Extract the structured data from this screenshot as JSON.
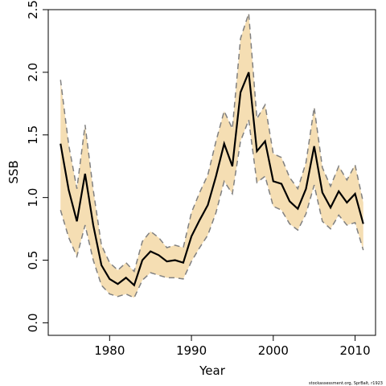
{
  "chart_data": {
    "type": "line",
    "title": "",
    "xlabel": "Year",
    "ylabel": "SSB",
    "xlim": [
      1972.5,
      2012.5
    ],
    "ylim": [
      -0.1,
      2.5
    ],
    "x_ticks": [
      1980,
      1990,
      2000,
      2010
    ],
    "x_tick_labels": [
      "1980",
      "1990",
      "2000",
      "2010"
    ],
    "y_ticks": [
      0.0,
      0.5,
      1.0,
      1.5,
      2.0,
      2.5
    ],
    "y_tick_labels": [
      "0.0",
      "0.5",
      "1.0",
      "1.5",
      "2.0",
      "2.5"
    ],
    "grid": false,
    "colors": {
      "band": "#f5deb3",
      "estimate": "#000000",
      "bounds": "#808080"
    },
    "x": [
      1974,
      1975,
      1976,
      1977,
      1978,
      1979,
      1980,
      1981,
      1982,
      1983,
      1984,
      1985,
      1986,
      1987,
      1988,
      1989,
      1990,
      1991,
      1992,
      1993,
      1994,
      1995,
      1996,
      1997,
      1998,
      1999,
      2000,
      2001,
      2002,
      2003,
      2004,
      2005,
      2006,
      2007,
      2008,
      2009,
      2010,
      2011
    ],
    "series": [
      {
        "role": "estimate",
        "values": [
          1.43,
          1.06,
          0.81,
          1.19,
          0.78,
          0.46,
          0.35,
          0.31,
          0.36,
          0.3,
          0.5,
          0.57,
          0.54,
          0.49,
          0.5,
          0.48,
          0.69,
          0.82,
          0.94,
          1.17,
          1.43,
          1.25,
          1.84,
          2.0,
          1.37,
          1.45,
          1.13,
          1.11,
          0.97,
          0.91,
          1.07,
          1.41,
          1.04,
          0.92,
          1.05,
          0.96,
          1.03,
          0.79
        ]
      },
      {
        "role": "upper",
        "values": [
          1.94,
          1.42,
          1.07,
          1.58,
          1.06,
          0.62,
          0.48,
          0.42,
          0.48,
          0.41,
          0.65,
          0.73,
          0.68,
          0.6,
          0.62,
          0.6,
          0.88,
          1.04,
          1.18,
          1.45,
          1.69,
          1.55,
          2.27,
          2.47,
          1.63,
          1.74,
          1.35,
          1.32,
          1.16,
          1.07,
          1.28,
          1.72,
          1.24,
          1.09,
          1.25,
          1.14,
          1.26,
          0.96
        ]
      },
      {
        "role": "lower",
        "values": [
          0.9,
          0.68,
          0.53,
          0.78,
          0.5,
          0.3,
          0.23,
          0.21,
          0.23,
          0.2,
          0.34,
          0.4,
          0.38,
          0.36,
          0.36,
          0.35,
          0.49,
          0.6,
          0.7,
          0.88,
          1.13,
          1.03,
          1.45,
          1.62,
          1.12,
          1.17,
          0.93,
          0.9,
          0.79,
          0.74,
          0.87,
          1.1,
          0.81,
          0.75,
          0.86,
          0.78,
          0.8,
          0.58
        ]
      }
    ]
  },
  "credit": "stockassessment.org, SprBalt, r1923"
}
